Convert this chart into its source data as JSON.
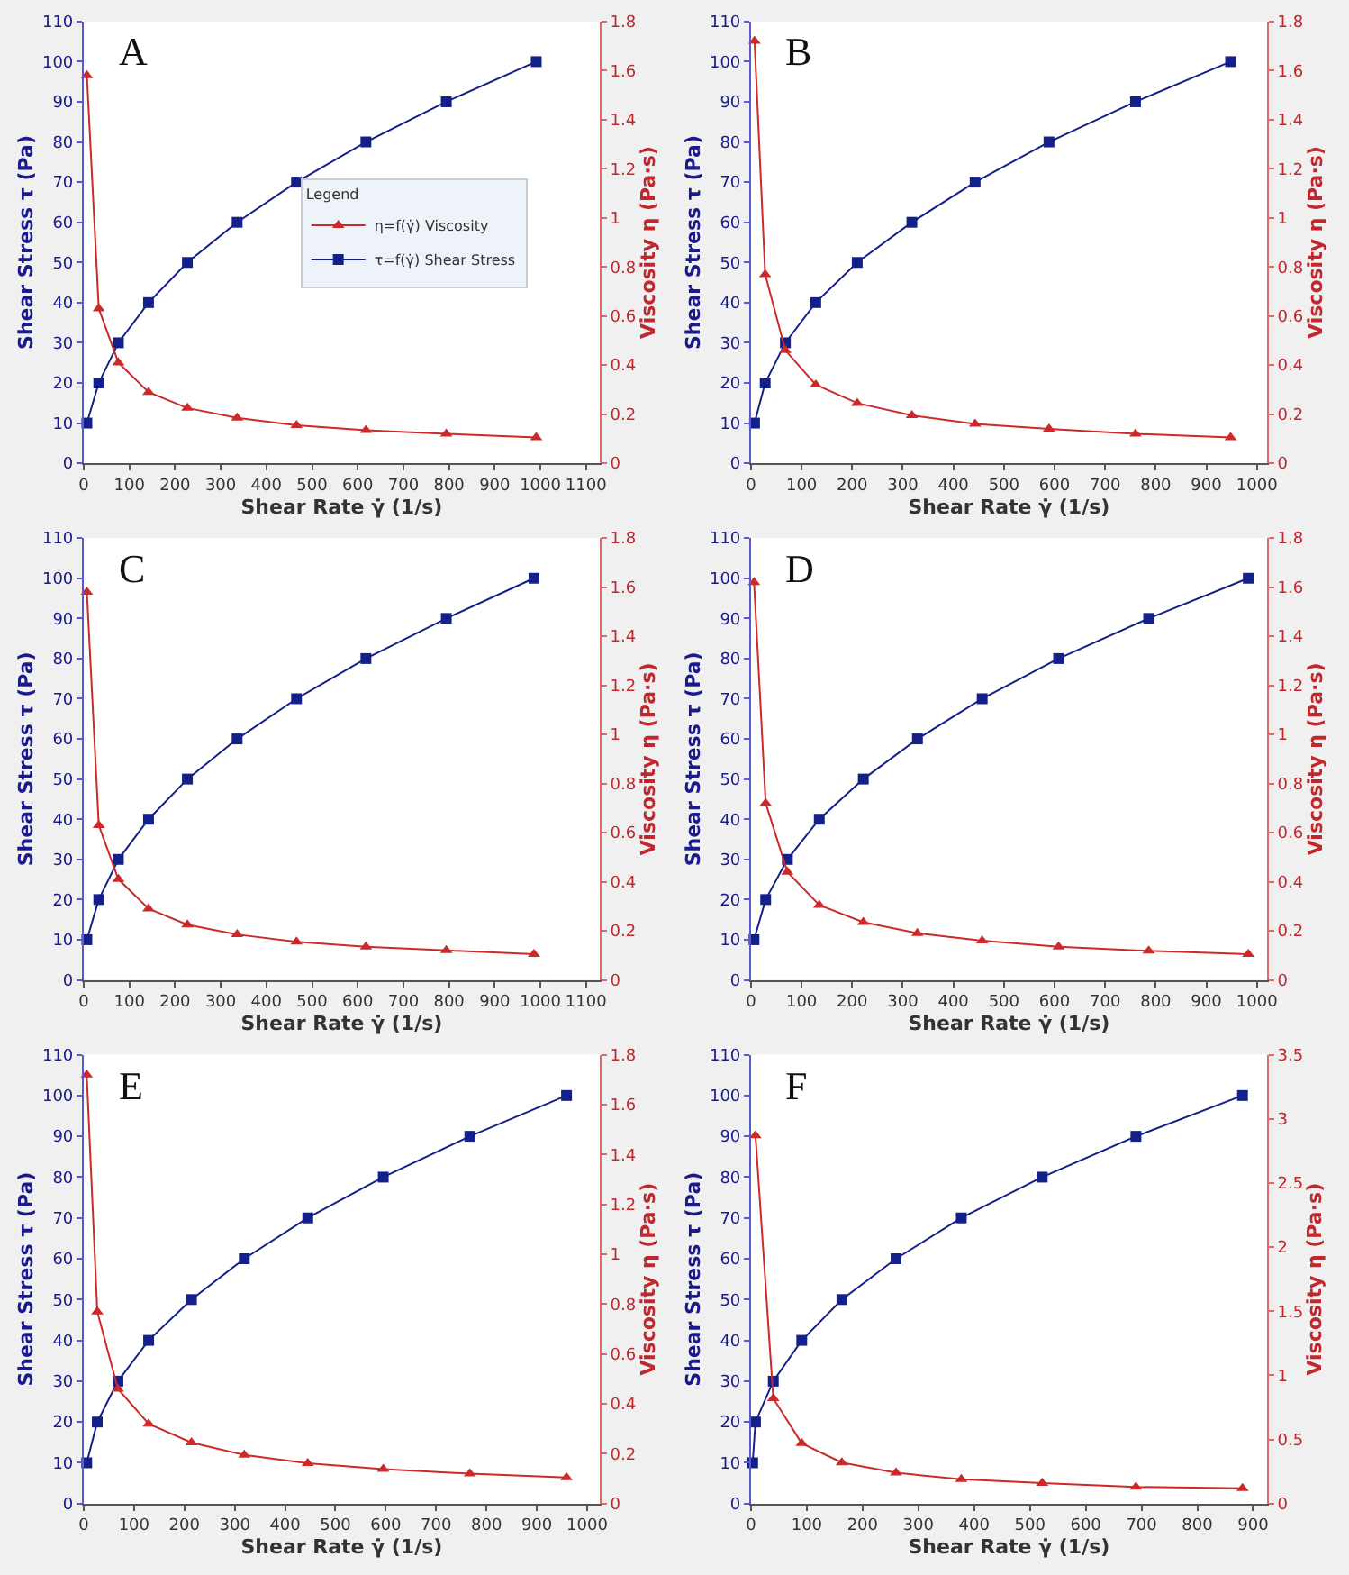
{
  "chart_data": [
    {
      "type": "line",
      "title": "A",
      "xlabel": "Shear Rate γ̇ (1/s)",
      "ylabel": "Shear Stress τ (Pa)",
      "y2label": "Viscosity η (Pa·s)",
      "legend": "center",
      "legend_title": "Legend",
      "xlim": [
        0,
        1130
      ],
      "xticks": [
        0,
        100,
        200,
        300,
        400,
        500,
        600,
        700,
        800,
        900,
        1000,
        1100
      ],
      "ylim": [
        0,
        110
      ],
      "yticks": [
        0,
        10,
        20,
        30,
        40,
        50,
        60,
        70,
        80,
        90,
        100,
        110
      ],
      "y2lim": [
        0,
        1.8
      ],
      "y2ticks": [
        0,
        0.2,
        0.4,
        0.6,
        0.8,
        1,
        1.2,
        1.4,
        1.6,
        1.8
      ],
      "series": [
        {
          "name": "η=f(γ̇) Viscosity",
          "color": "#cc2a2a",
          "marker": "triangle",
          "axis": "y2",
          "x": [
            7,
            33,
            76,
            142,
            227,
            336,
            466,
            618,
            794,
            991
          ],
          "values": [
            1.58,
            0.63,
            0.41,
            0.29,
            0.225,
            0.185,
            0.155,
            0.135,
            0.12,
            0.105
          ]
        },
        {
          "name": "τ=f(γ̇) Shear Stress",
          "color": "#14208a",
          "marker": "square",
          "x": [
            7,
            33,
            76,
            142,
            227,
            336,
            466,
            618,
            794,
            991
          ],
          "values": [
            10,
            20,
            30,
            40,
            50,
            60,
            70,
            80,
            90,
            100
          ]
        }
      ]
    },
    {
      "type": "line",
      "title": "B",
      "xlabel": "Shear Rate γ̇ (1/s)",
      "ylabel": "Shear Stress τ (Pa)",
      "y2label": "Viscosity η (Pa·s)",
      "xlim": [
        0,
        1020
      ],
      "xticks": [
        0,
        100,
        200,
        300,
        400,
        500,
        600,
        700,
        800,
        900,
        1000
      ],
      "ylim": [
        0,
        110
      ],
      "yticks": [
        0,
        10,
        20,
        30,
        40,
        50,
        60,
        70,
        80,
        90,
        100,
        110
      ],
      "y2lim": [
        0,
        1.8
      ],
      "y2ticks": [
        0,
        0.2,
        0.4,
        0.6,
        0.8,
        1,
        1.2,
        1.4,
        1.6,
        1.8
      ],
      "series": [
        {
          "color": "#cc2a2a",
          "marker": "triangle",
          "axis": "y2",
          "x": [
            7,
            28,
            68,
            128,
            210,
            318,
            443,
            589,
            760,
            948
          ],
          "values": [
            1.72,
            0.77,
            0.46,
            0.32,
            0.245,
            0.195,
            0.16,
            0.14,
            0.12,
            0.105
          ]
        },
        {
          "color": "#14208a",
          "marker": "square",
          "x": [
            7,
            28,
            68,
            128,
            210,
            318,
            443,
            589,
            760,
            948
          ],
          "values": [
            10,
            20,
            30,
            40,
            50,
            60,
            70,
            80,
            90,
            100
          ]
        }
      ]
    },
    {
      "type": "line",
      "title": "C",
      "xlabel": "Shear Rate γ̇ (1/s)",
      "ylabel": "Shear Stress τ (Pa)",
      "y2label": "Viscosity η (Pa·s)",
      "xlim": [
        0,
        1130
      ],
      "xticks": [
        0,
        100,
        200,
        300,
        400,
        500,
        600,
        700,
        800,
        900,
        1000,
        1100
      ],
      "ylim": [
        0,
        110
      ],
      "yticks": [
        0,
        10,
        20,
        30,
        40,
        50,
        60,
        70,
        80,
        90,
        100,
        110
      ],
      "y2lim": [
        0,
        1.8
      ],
      "y2ticks": [
        0,
        0.2,
        0.4,
        0.6,
        0.8,
        1,
        1.2,
        1.4,
        1.6,
        1.8
      ],
      "series": [
        {
          "color": "#cc2a2a",
          "marker": "triangle",
          "axis": "y2",
          "x": [
            7,
            33,
            76,
            142,
            227,
            336,
            466,
            618,
            794,
            986
          ],
          "values": [
            1.58,
            0.63,
            0.41,
            0.29,
            0.225,
            0.185,
            0.155,
            0.135,
            0.12,
            0.105
          ]
        },
        {
          "color": "#14208a",
          "marker": "square",
          "x": [
            7,
            33,
            76,
            142,
            227,
            336,
            466,
            618,
            794,
            986
          ],
          "values": [
            10,
            20,
            30,
            40,
            50,
            60,
            70,
            80,
            90,
            100
          ]
        }
      ]
    },
    {
      "type": "line",
      "title": "D",
      "xlabel": "Shear Rate γ̇ (1/s)",
      "ylabel": "Shear Stress τ (Pa)",
      "y2label": "Viscosity η (Pa·s)",
      "xlim": [
        0,
        1020
      ],
      "xticks": [
        0,
        100,
        200,
        300,
        400,
        500,
        600,
        700,
        800,
        900,
        1000
      ],
      "ylim": [
        0,
        110
      ],
      "yticks": [
        0,
        10,
        20,
        30,
        40,
        50,
        60,
        70,
        80,
        90,
        100,
        110
      ],
      "y2lim": [
        0,
        1.8
      ],
      "y2ticks": [
        0,
        0.2,
        0.4,
        0.6,
        0.8,
        1,
        1.2,
        1.4,
        1.6,
        1.8
      ],
      "series": [
        {
          "color": "#cc2a2a",
          "marker": "triangle",
          "axis": "y2",
          "x": [
            6,
            29,
            72,
            135,
            222,
            329,
            457,
            608,
            786,
            983
          ],
          "values": [
            1.62,
            0.72,
            0.44,
            0.305,
            0.235,
            0.19,
            0.16,
            0.135,
            0.118,
            0.105
          ]
        },
        {
          "color": "#14208a",
          "marker": "square",
          "x": [
            6,
            29,
            72,
            135,
            222,
            329,
            457,
            608,
            786,
            983
          ],
          "values": [
            10,
            20,
            30,
            40,
            50,
            60,
            70,
            80,
            90,
            100
          ]
        }
      ]
    },
    {
      "type": "line",
      "title": "E",
      "xlabel": "Shear Rate γ̇ (1/s)",
      "ylabel": "Shear Stress τ (Pa)",
      "y2label": "Viscosity η (Pa·s)",
      "xlim": [
        0,
        1025
      ],
      "xticks": [
        0,
        100,
        200,
        300,
        400,
        500,
        600,
        700,
        800,
        900,
        1000
      ],
      "ylim": [
        0,
        110
      ],
      "yticks": [
        0,
        10,
        20,
        30,
        40,
        50,
        60,
        70,
        80,
        90,
        100,
        110
      ],
      "y2lim": [
        0,
        1.8
      ],
      "y2ticks": [
        0,
        0.2,
        0.4,
        0.6,
        0.8,
        1,
        1.2,
        1.4,
        1.6,
        1.8
      ],
      "series": [
        {
          "color": "#cc2a2a",
          "marker": "triangle",
          "axis": "y2",
          "x": [
            6,
            27,
            68,
            129,
            214,
            319,
            445,
            595,
            767,
            959
          ],
          "values": [
            1.72,
            0.77,
            0.46,
            0.32,
            0.245,
            0.195,
            0.162,
            0.138,
            0.12,
            0.105
          ]
        },
        {
          "color": "#14208a",
          "marker": "square",
          "x": [
            6,
            27,
            68,
            129,
            214,
            319,
            445,
            595,
            767,
            959
          ],
          "values": [
            10,
            20,
            30,
            40,
            50,
            60,
            70,
            80,
            90,
            100
          ]
        }
      ]
    },
    {
      "type": "line",
      "title": "F",
      "xlabel": "Shear Rate γ̇ (1/s)",
      "ylabel": "Shear Stress τ (Pa)",
      "y2label": "Viscosity η (Pa·s)",
      "xlim": [
        0,
        925
      ],
      "xticks": [
        0,
        100,
        200,
        300,
        400,
        500,
        600,
        700,
        800,
        900
      ],
      "ylim": [
        0,
        110
      ],
      "yticks": [
        0,
        10,
        20,
        30,
        40,
        50,
        60,
        70,
        80,
        90,
        100,
        110
      ],
      "y2lim": [
        0,
        3.5
      ],
      "y2ticks": [
        0,
        0.5,
        1,
        1.5,
        2,
        2.5,
        3,
        3.5
      ],
      "series": [
        {
          "color": "#cc2a2a",
          "marker": "triangle",
          "axis": "y2",
          "x": [
            8,
            40,
            91,
            163,
            260,
            377,
            522,
            690,
            881
          ],
          "values": [
            2.87,
            0.82,
            0.47,
            0.32,
            0.24,
            0.19,
            0.16,
            0.13,
            0.12
          ]
        },
        {
          "color": "#14208a",
          "marker": "square",
          "x": [
            3,
            8,
            40,
            91,
            163,
            260,
            377,
            522,
            690,
            881
          ],
          "values": [
            10,
            20,
            30,
            40,
            50,
            60,
            70,
            80,
            90,
            100
          ]
        }
      ]
    }
  ]
}
